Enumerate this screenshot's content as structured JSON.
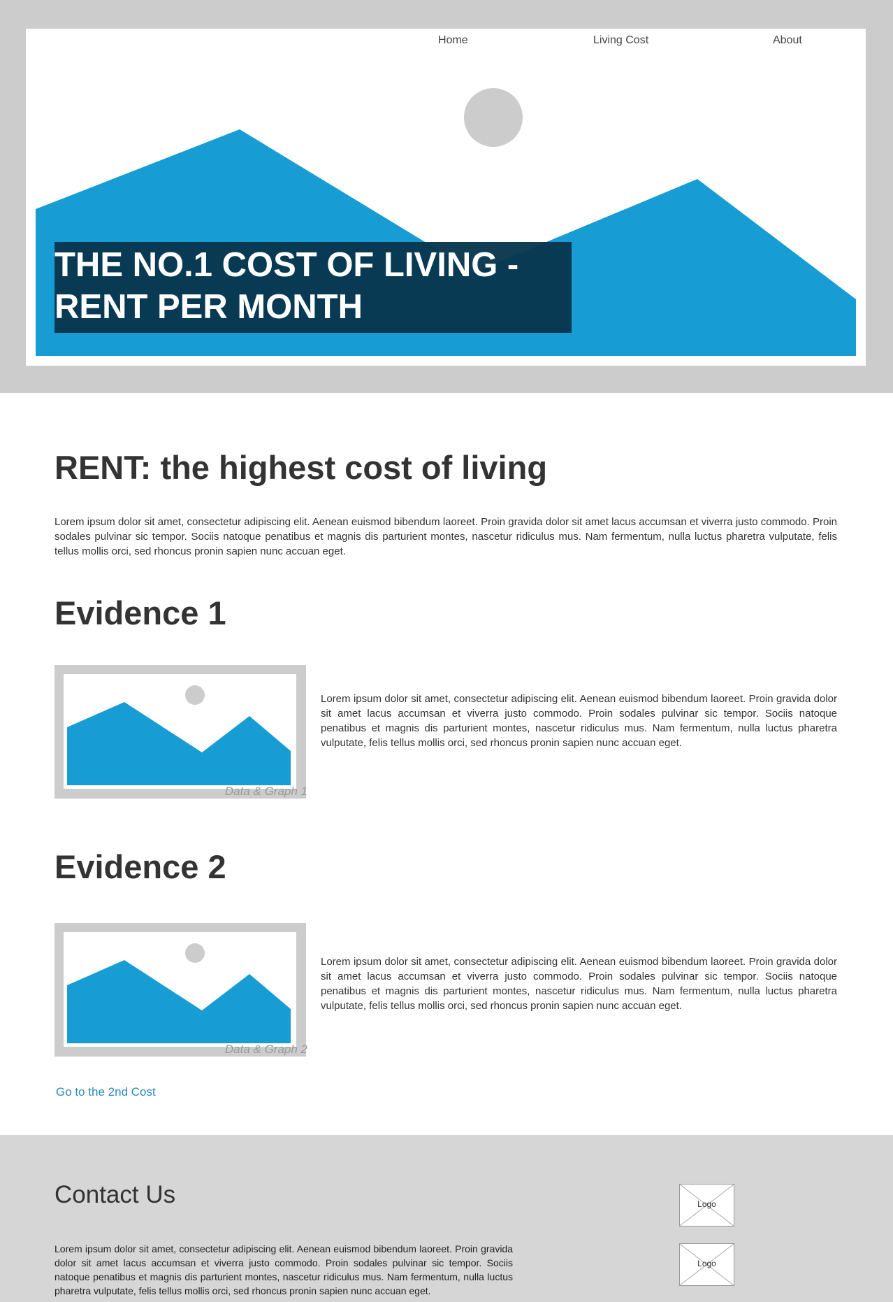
{
  "nav": {
    "home": "Home",
    "living_cost": "Living Cost",
    "about": "About"
  },
  "hero": {
    "title_line1": "THE NO.1 COST OF LIVING -",
    "title_line2": "RENT PER MONTH"
  },
  "main": {
    "title": "RENT: the highest cost of living",
    "intro": "Lorem ipsum dolor sit amet, consectetur adipiscing elit. Aenean euismod bibendum laoreet. Proin gravida dolor sit amet lacus accumsan et viverra justo commodo. Proin sodales pulvinar sic tempor. Sociis natoque penatibus et magnis dis parturient montes, nascetur ridiculus mus. Nam fermentum, nulla luctus pharetra vulputate, felis tellus mollis orci, sed rhoncus pronin sapien nunc accuan eget.",
    "evidence": [
      {
        "heading": "Evidence 1",
        "caption": "Data & Graph 1",
        "text": "Lorem ipsum dolor sit amet, consectetur adipiscing elit. Aenean euismod bibendum laoreet. Proin gravida dolor sit amet lacus accumsan et viverra justo commodo. Proin sodales pulvinar sic tempor. Sociis natoque penatibus et magnis dis parturient montes, nascetur ridiculus mus. Nam fermentum, nulla luctus pharetra vulputate, felis tellus mollis orci, sed rhoncus pronin sapien nunc accuan eget."
      },
      {
        "heading": "Evidence 2",
        "caption": "Data & Graph 2",
        "text": "Lorem ipsum dolor sit amet, consectetur adipiscing elit. Aenean euismod bibendum laoreet. Proin gravida dolor sit amet lacus accumsan et viverra justo commodo. Proin sodales pulvinar sic tempor. Sociis natoque penatibus et magnis dis parturient montes, nascetur ridiculus mus. Nam fermentum, nulla luctus pharetra vulputate, felis tellus mollis orci, sed rhoncus pronin sapien nunc accuan eget."
      }
    ],
    "next_link": "Go to the 2nd Cost"
  },
  "footer": {
    "title": "Contact Us",
    "text": "Lorem ipsum dolor sit amet, consectetur adipiscing elit. Aenean euismod bibendum laoreet. Proin gravida dolor sit amet lacus accumsan et viverra justo commodo. Proin sodales pulvinar sic tempor. Sociis natoque penatibus et magnis dis parturient montes, nascetur ridiculus mus. Nam fermentum, nulla luctus pharetra vulputate, felis tellus mollis orci, sed rhoncus pronin sapien nunc accuan eget.",
    "logos": [
      "Logo",
      "Logo"
    ]
  },
  "colors": {
    "mountain_blue": "#189cd4",
    "frame_gray": "#cccccc",
    "title_overlay": "#08364e",
    "link_blue": "#2a8ab8",
    "footer_gray": "#d6d6d6"
  },
  "icons": {
    "hero_image": "image-placeholder-icon",
    "figure_image": "image-placeholder-icon",
    "logo": "logo-placeholder-icon"
  }
}
